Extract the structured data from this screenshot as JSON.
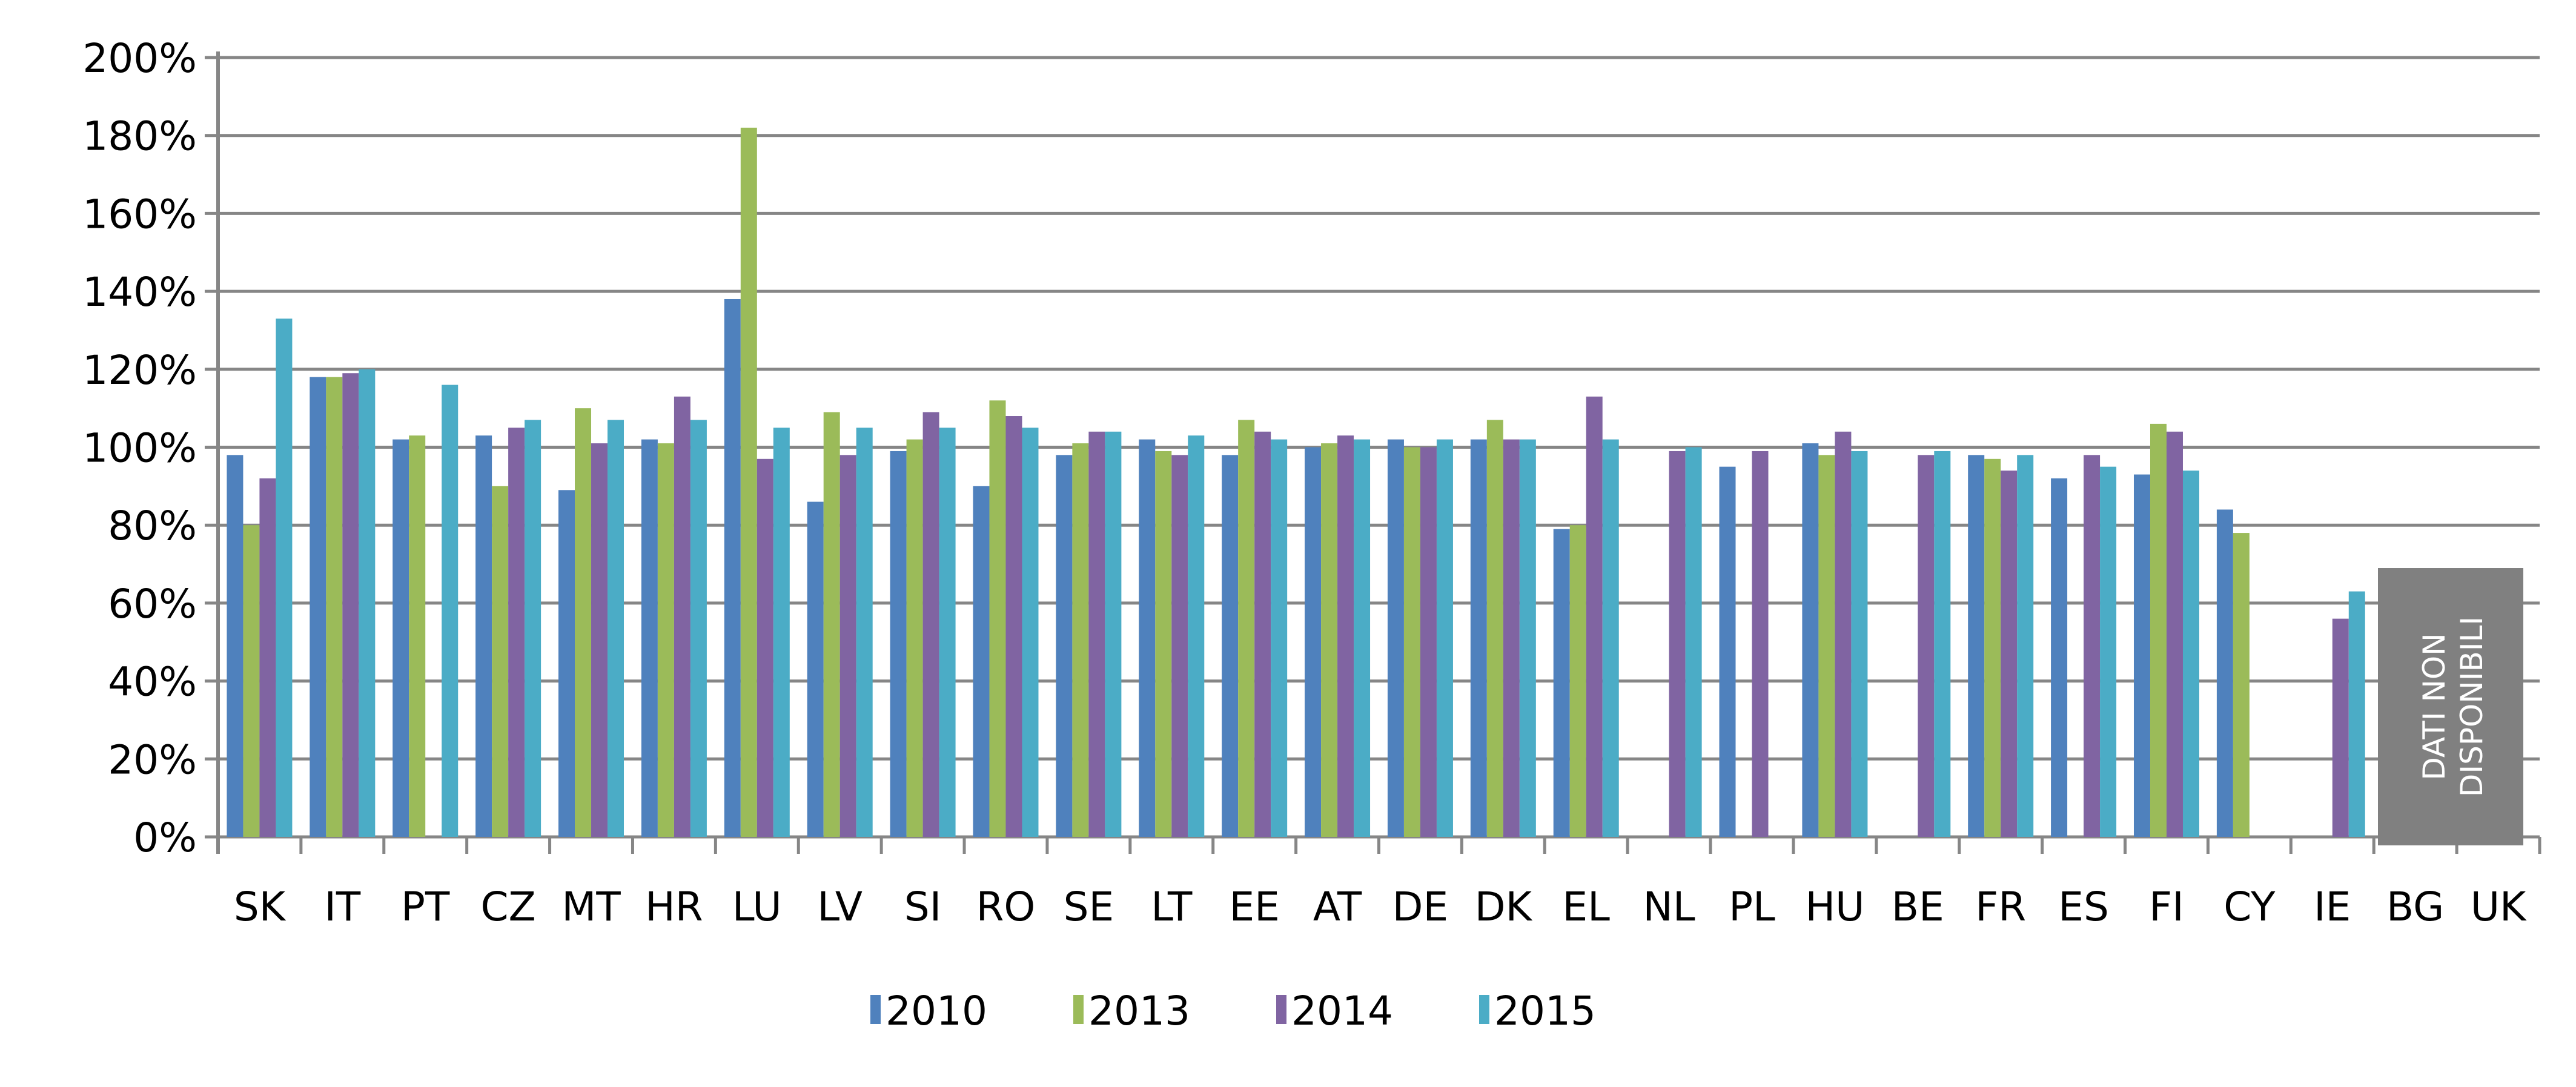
{
  "chart_data": {
    "type": "bar",
    "title": "",
    "xlabel": "",
    "ylabel": "",
    "ylim": [
      0,
      200
    ],
    "y_ticks": [
      "0%",
      "20%",
      "40%",
      "60%",
      "80%",
      "100%",
      "120%",
      "140%",
      "160%",
      "180%",
      "200%"
    ],
    "grid": true,
    "legend_position": "bottom",
    "categories": [
      "SK",
      "IT",
      "PT",
      "CZ",
      "MT",
      "HR",
      "LU",
      "LV",
      "SI",
      "RO",
      "SE",
      "LT",
      "EE",
      "AT",
      "DE",
      "DK",
      "EL",
      "NL",
      "PL",
      "HU",
      "BE",
      "FR",
      "ES",
      "FI",
      "CY",
      "IE",
      "BG",
      "UK"
    ],
    "series": [
      {
        "name": "2010",
        "color": "#4f81bd",
        "values": [
          98,
          118,
          102,
          103,
          89,
          102,
          138,
          86,
          99,
          90,
          98,
          102,
          98,
          100,
          102,
          102,
          79,
          null,
          95,
          101,
          null,
          98,
          92,
          93,
          84,
          null,
          null,
          null
        ]
      },
      {
        "name": "2013",
        "color": "#9bbb59",
        "values": [
          80,
          118,
          103,
          90,
          110,
          101,
          182,
          109,
          102,
          112,
          101,
          99,
          107,
          101,
          100,
          107,
          80,
          null,
          null,
          98,
          null,
          97,
          null,
          106,
          78,
          null,
          null,
          null
        ]
      },
      {
        "name": "2014",
        "color": "#8064a2",
        "values": [
          92,
          119,
          null,
          105,
          101,
          113,
          97,
          98,
          109,
          108,
          104,
          98,
          104,
          103,
          100,
          102,
          113,
          99,
          99,
          104,
          98,
          94,
          98,
          104,
          null,
          56,
          null,
          null
        ]
      },
      {
        "name": "2015",
        "color": "#4bacc6",
        "values": [
          133,
          120,
          116,
          107,
          107,
          107,
          105,
          105,
          105,
          105,
          104,
          103,
          102,
          102,
          102,
          102,
          102,
          100,
          null,
          99,
          99,
          98,
          95,
          94,
          null,
          63,
          null,
          null
        ]
      }
    ],
    "annotation": "DATI NON DISPONIBILI"
  }
}
